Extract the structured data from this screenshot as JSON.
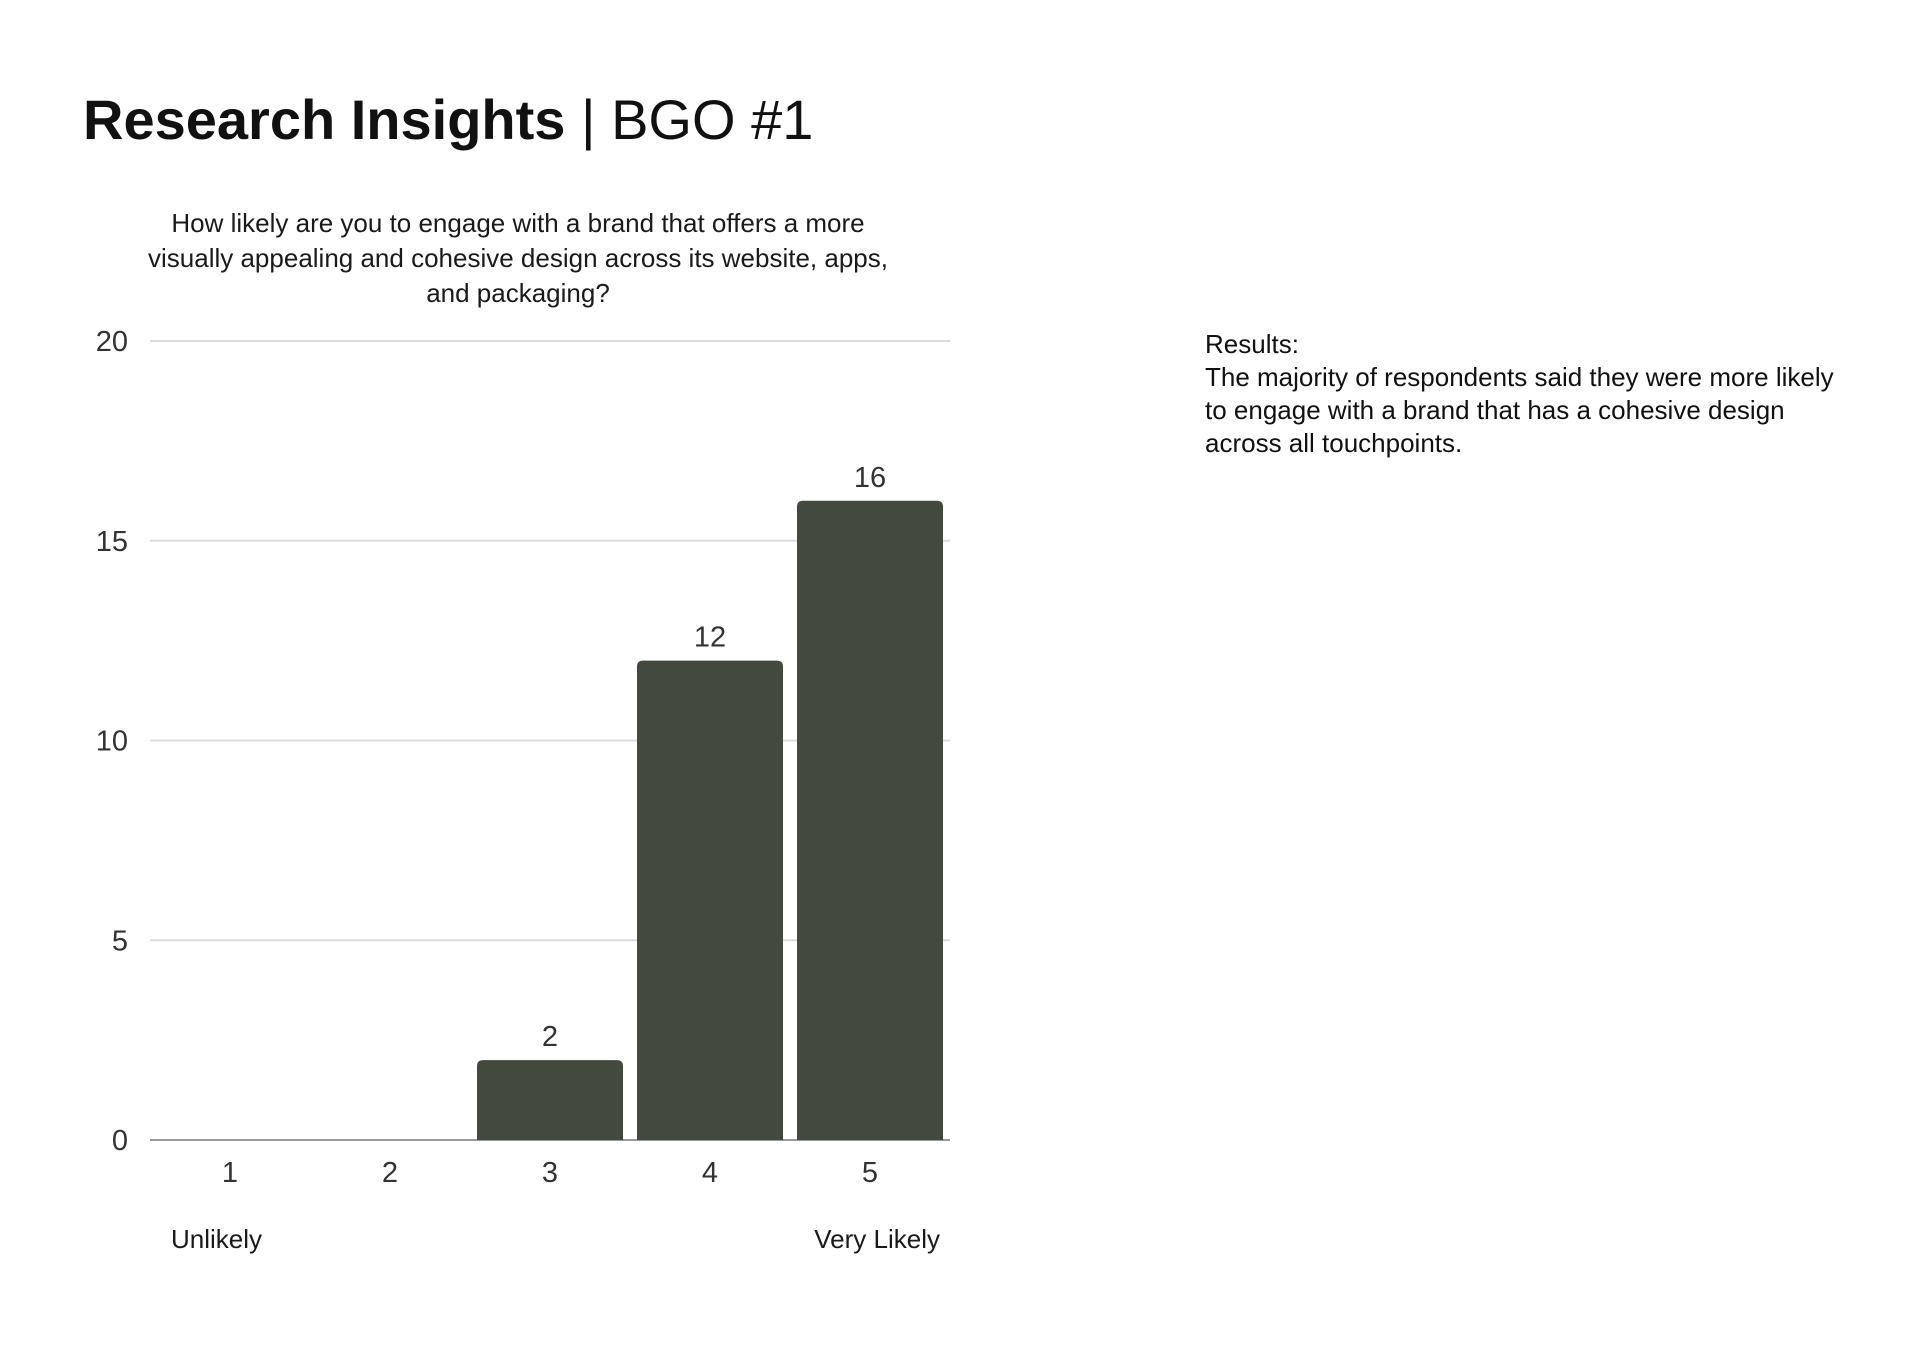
{
  "page": {
    "title_bold": "Research Insights",
    "title_rest": " | BGO #1"
  },
  "chart_data": {
    "type": "bar",
    "title": "How likely are you to engage with a brand that offers a more visually appealing and cohesive design across its website, apps, and packaging?",
    "categories": [
      "1",
      "2",
      "3",
      "4",
      "5"
    ],
    "values": [
      0,
      0,
      2,
      12,
      16
    ],
    "data_labels": [
      "",
      "",
      "2",
      "12",
      "16"
    ],
    "ylim": [
      0,
      20
    ],
    "yticks": [
      0,
      5,
      10,
      15,
      20
    ],
    "grid": true,
    "bar_color": "#424A3E",
    "scale_labels": {
      "left": "Unlikely",
      "right": "Very Likely"
    }
  },
  "results": {
    "heading": "Results:",
    "body": "The majority of respondents said they were more likely to engage with a brand that has a cohesive design across all touchpoints."
  }
}
